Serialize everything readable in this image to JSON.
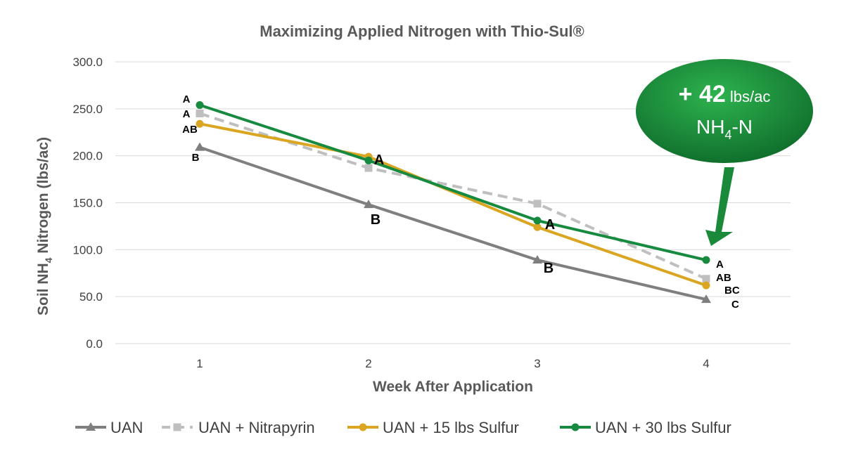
{
  "chart_data": {
    "type": "line",
    "title": "Maximizing Applied Nitrogen with Thio-Sul®",
    "xlabel": "Week After Application",
    "ylabel_main": "Soil NH",
    "ylabel_sub": "4",
    "ylabel_tail": " Nitrogen (lbs/ac)",
    "x": [
      1,
      2,
      3,
      4
    ],
    "x_tick_labels": [
      "1",
      "2",
      "3",
      "4"
    ],
    "ylim": [
      0,
      300
    ],
    "y_ticks": [
      0,
      50,
      100,
      150,
      200,
      250,
      300
    ],
    "y_tick_labels": [
      "0.0",
      "50.0",
      "100.0",
      "150.0",
      "200.0",
      "250.0",
      "300.0"
    ],
    "grid": "horizontal",
    "legend_position": "bottom",
    "series": [
      {
        "name": "UAN",
        "values": [
          209,
          148,
          89,
          47
        ],
        "color": "#7f7f7f",
        "marker": "triangle",
        "dash": "solid"
      },
      {
        "name": "UAN + Nitrapyrin",
        "values": [
          245,
          187,
          149,
          69
        ],
        "color": "#bfbfbf",
        "marker": "square",
        "dash": "dashed"
      },
      {
        "name": "UAN + 15 lbs Sulfur",
        "values": [
          234,
          199,
          124,
          62
        ],
        "color": "#daa520",
        "marker": "circle",
        "dash": "solid"
      },
      {
        "name": "UAN + 30 lbs Sulfur",
        "values": [
          254,
          195,
          131,
          89
        ],
        "color": "#168a3e",
        "marker": "circle",
        "dash": "solid"
      }
    ],
    "annotations": {
      "week1": [
        "A",
        "A",
        "AB",
        "B"
      ],
      "week2": [
        "A",
        "B"
      ],
      "week3": [
        "A",
        "B"
      ],
      "week4": [
        "A",
        "AB",
        "BC",
        "C"
      ]
    },
    "callout": {
      "line1_value": "+ 42",
      "line1_unit": " lbs/ac",
      "line2_main": "NH",
      "line2_sub": "4",
      "line2_tail": "-N"
    }
  }
}
